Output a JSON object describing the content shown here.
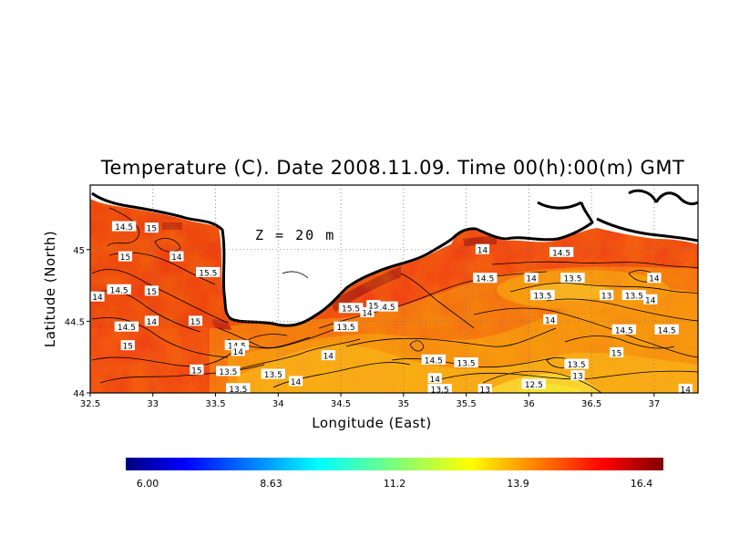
{
  "title": "Temperature (C). Date 2008.11.09. Time 00(h):00(m) GMT",
  "depth_label": "Z = 20 m",
  "chart_data": {
    "type": "heatmap",
    "variable": "Temperature",
    "unit": "C",
    "date": "2008.11.09",
    "time": "00(h):00(m)",
    "timezone": "GMT",
    "depth": "20 m",
    "xlabel": "Longitude (East)",
    "ylabel": "Latitude (North)",
    "xlim": [
      32.5,
      37.35
    ],
    "ylim": [
      44.0,
      45.45
    ],
    "x_ticks": [
      "32.5",
      "33",
      "33.5",
      "34",
      "34.5",
      "35",
      "35.5",
      "36",
      "36.5",
      "37"
    ],
    "y_ticks": [
      "44",
      "44.5",
      "45"
    ],
    "grid": true,
    "colorbar": {
      "min": 6.0,
      "max": 16.4,
      "tick_labels": [
        "6.00",
        "8.63",
        "11.2",
        "13.9",
        "16.4"
      ],
      "colormap": "jet"
    },
    "contour_labels": [
      {
        "lon": 32.77,
        "lat": 45.16,
        "value": "14.5"
      },
      {
        "lon": 32.99,
        "lat": 45.15,
        "value": "15"
      },
      {
        "lon": 32.78,
        "lat": 44.95,
        "value": "15"
      },
      {
        "lon": 33.19,
        "lat": 44.95,
        "value": "14"
      },
      {
        "lon": 33.44,
        "lat": 44.84,
        "value": "15.5"
      },
      {
        "lon": 32.55,
        "lat": 44.67,
        "value": "14"
      },
      {
        "lon": 32.73,
        "lat": 44.72,
        "value": "14.5"
      },
      {
        "lon": 32.99,
        "lat": 44.71,
        "value": "15"
      },
      {
        "lon": 32.79,
        "lat": 44.46,
        "value": "14.5"
      },
      {
        "lon": 32.99,
        "lat": 44.5,
        "value": "14"
      },
      {
        "lon": 33.34,
        "lat": 44.5,
        "value": "15"
      },
      {
        "lon": 32.8,
        "lat": 44.33,
        "value": "15"
      },
      {
        "lon": 33.35,
        "lat": 44.16,
        "value": "15"
      },
      {
        "lon": 33.67,
        "lat": 44.33,
        "value": "14.5"
      },
      {
        "lon": 33.68,
        "lat": 44.29,
        "value": "14"
      },
      {
        "lon": 33.6,
        "lat": 44.15,
        "value": "13.5"
      },
      {
        "lon": 33.96,
        "lat": 44.13,
        "value": "13.5"
      },
      {
        "lon": 33.68,
        "lat": 44.03,
        "value": "13.5"
      },
      {
        "lon": 34.14,
        "lat": 44.08,
        "value": "14"
      },
      {
        "lon": 34.4,
        "lat": 44.26,
        "value": "14"
      },
      {
        "lon": 34.54,
        "lat": 44.46,
        "value": "13.5"
      },
      {
        "lon": 34.71,
        "lat": 44.56,
        "value": "14"
      },
      {
        "lon": 34.86,
        "lat": 44.6,
        "value": "14.5"
      },
      {
        "lon": 34.58,
        "lat": 44.59,
        "value": "15.5"
      },
      {
        "lon": 34.76,
        "lat": 44.61,
        "value": "15"
      },
      {
        "lon": 35.25,
        "lat": 44.1,
        "value": "14"
      },
      {
        "lon": 35.29,
        "lat": 44.0,
        "value": "13.5"
      },
      {
        "lon": 35.24,
        "lat": 44.23,
        "value": "14.5"
      },
      {
        "lon": 35.5,
        "lat": 44.21,
        "value": "13.5"
      },
      {
        "lon": 35.65,
        "lat": 44.0,
        "value": "13"
      },
      {
        "lon": 35.63,
        "lat": 45.0,
        "value": "14"
      },
      {
        "lon": 35.65,
        "lat": 44.8,
        "value": "14.5"
      },
      {
        "lon": 36.02,
        "lat": 44.8,
        "value": "14"
      },
      {
        "lon": 36.26,
        "lat": 44.98,
        "value": "14.5"
      },
      {
        "lon": 36.35,
        "lat": 44.8,
        "value": "13.5"
      },
      {
        "lon": 36.11,
        "lat": 44.68,
        "value": "13.5"
      },
      {
        "lon": 36.62,
        "lat": 44.68,
        "value": "13"
      },
      {
        "lon": 36.84,
        "lat": 44.68,
        "value": "13.5"
      },
      {
        "lon": 37.0,
        "lat": 44.8,
        "value": "14"
      },
      {
        "lon": 36.97,
        "lat": 44.65,
        "value": "14"
      },
      {
        "lon": 36.17,
        "lat": 44.51,
        "value": "14"
      },
      {
        "lon": 36.76,
        "lat": 44.44,
        "value": "14.5"
      },
      {
        "lon": 37.1,
        "lat": 44.44,
        "value": "14.5"
      },
      {
        "lon": 36.7,
        "lat": 44.28,
        "value": "15"
      },
      {
        "lon": 36.38,
        "lat": 44.2,
        "value": "13.5"
      },
      {
        "lon": 36.39,
        "lat": 44.12,
        "value": "13"
      },
      {
        "lon": 36.04,
        "lat": 44.06,
        "value": "12.5"
      },
      {
        "lon": 37.25,
        "lat": 44.0,
        "value": "14"
      }
    ]
  }
}
